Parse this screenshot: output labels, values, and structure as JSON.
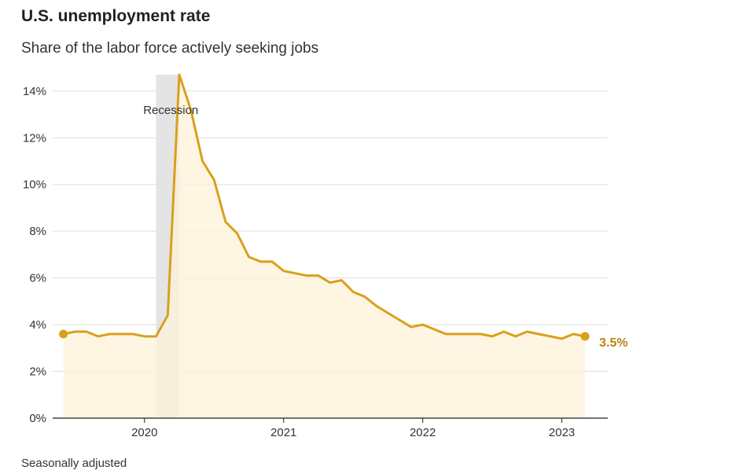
{
  "header": {
    "title": "U.S. unemployment rate",
    "subtitle": "Share of the labor force actively seeking jobs"
  },
  "footer": {
    "note": "Seasonally adjusted"
  },
  "colors": {
    "line": "#d9a01c",
    "fill": "#fdf3d9",
    "recession": "#e4e4e4",
    "grid": "#dddddd",
    "axis": "#222222",
    "label": "#b8860b"
  },
  "chart_data": {
    "type": "area",
    "title": "U.S. unemployment rate",
    "ylabel": "Share of the labor force actively seeking jobs",
    "ylim": [
      0,
      14.7
    ],
    "y_ticks": [
      0,
      2,
      4,
      6,
      8,
      10,
      12,
      14
    ],
    "y_tick_labels": [
      "0%",
      "2%",
      "4%",
      "6%",
      "8%",
      "10%",
      "12%",
      "14%"
    ],
    "x_ticks": [
      2020,
      2021,
      2022,
      2023
    ],
    "x_tick_labels": [
      "2020",
      "2021",
      "2022",
      "2023"
    ],
    "xlim": [
      2019.34,
      2023.33
    ],
    "recession": {
      "label": "Recession",
      "start": 2020.083,
      "end": 2020.25
    },
    "end_label": "3.5%",
    "series": [
      {
        "name": "Unemployment rate",
        "points": [
          [
            2019.417,
            3.6
          ],
          [
            2019.5,
            3.7
          ],
          [
            2019.583,
            3.7
          ],
          [
            2019.667,
            3.5
          ],
          [
            2019.75,
            3.6
          ],
          [
            2019.833,
            3.6
          ],
          [
            2019.917,
            3.6
          ],
          [
            2020.0,
            3.5
          ],
          [
            2020.083,
            3.5
          ],
          [
            2020.167,
            4.4
          ],
          [
            2020.25,
            14.7
          ],
          [
            2020.333,
            13.2
          ],
          [
            2020.417,
            11.0
          ],
          [
            2020.5,
            10.2
          ],
          [
            2020.583,
            8.4
          ],
          [
            2020.667,
            7.9
          ],
          [
            2020.75,
            6.9
          ],
          [
            2020.833,
            6.7
          ],
          [
            2020.917,
            6.7
          ],
          [
            2021.0,
            6.3
          ],
          [
            2021.083,
            6.2
          ],
          [
            2021.167,
            6.1
          ],
          [
            2021.25,
            6.1
          ],
          [
            2021.333,
            5.8
          ],
          [
            2021.417,
            5.9
          ],
          [
            2021.5,
            5.4
          ],
          [
            2021.583,
            5.2
          ],
          [
            2021.667,
            4.8
          ],
          [
            2021.75,
            4.5
          ],
          [
            2021.833,
            4.2
          ],
          [
            2021.917,
            3.9
          ],
          [
            2022.0,
            4.0
          ],
          [
            2022.083,
            3.8
          ],
          [
            2022.167,
            3.6
          ],
          [
            2022.25,
            3.6
          ],
          [
            2022.333,
            3.6
          ],
          [
            2022.417,
            3.6
          ],
          [
            2022.5,
            3.5
          ],
          [
            2022.583,
            3.7
          ],
          [
            2022.667,
            3.5
          ],
          [
            2022.75,
            3.7
          ],
          [
            2022.833,
            3.6
          ],
          [
            2022.917,
            3.5
          ],
          [
            2023.0,
            3.4
          ],
          [
            2023.083,
            3.6
          ],
          [
            2023.167,
            3.5
          ]
        ]
      }
    ]
  }
}
